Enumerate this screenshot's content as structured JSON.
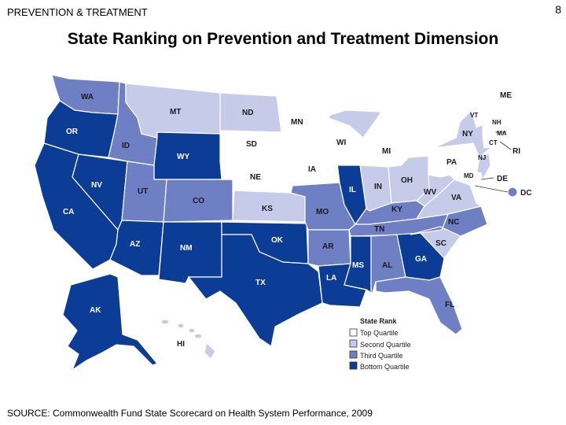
{
  "header": {
    "section": "PREVENTION & TREATMENT",
    "page_number": "8"
  },
  "title": "State Ranking on Prevention and Treatment Dimension",
  "source": "SOURCE: Commonwealth Fund State Scorecard on Health System Performance, 2009",
  "colors": {
    "top": "#ffffff",
    "second": "#c6cbea",
    "third": "#6f7fc4",
    "bottom": "#0b3c96",
    "border": "#333333"
  },
  "legend": {
    "title": "State Rank",
    "items": [
      "Top Quartile",
      "Second Quartile",
      "Third Quartile",
      "Bottom Quartile"
    ]
  },
  "states": {
    "WA": "third",
    "OR": "bottom",
    "CA": "bottom",
    "NV": "bottom",
    "ID": "third",
    "MT": "second",
    "WY": "bottom",
    "UT": "third",
    "CO": "third",
    "AZ": "bottom",
    "NM": "bottom",
    "ND": "second",
    "SD": "top",
    "NE": "top",
    "KS": "second",
    "OK": "bottom",
    "TX": "bottom",
    "MN": "top",
    "IA": "top",
    "MO": "third",
    "AR": "third",
    "LA": "bottom",
    "WI": "top",
    "IL": "bottom",
    "MI": "second",
    "IN": "second",
    "OH": "second",
    "KY": "third",
    "TN": "third",
    "MS": "bottom",
    "AL": "third",
    "GA": "bottom",
    "FL": "third",
    "SC": "second",
    "NC": "third",
    "VA": "second",
    "WV": "second",
    "PA": "top",
    "NY": "second",
    "VT": "top",
    "NH": "top",
    "ME": "top",
    "MA": "top",
    "RI": "top",
    "CT": "top",
    "NJ": "second",
    "DE": "top",
    "MD": "top",
    "DC": "third",
    "AK": "bottom",
    "HI": "second"
  }
}
